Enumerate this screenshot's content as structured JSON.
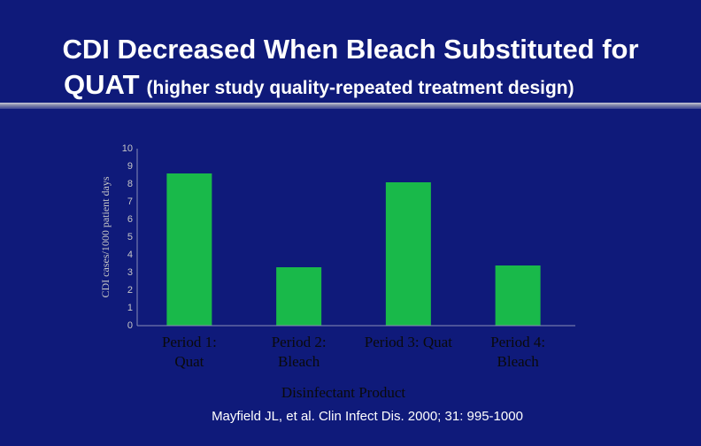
{
  "slide": {
    "title_main_line1": "CDI Decreased When Bleach Substituted for",
    "title_main_line2": "QUAT",
    "title_sub": "(higher study quality-repeated treatment design)",
    "citation": "Mayfield JL, et al. Clin Infect Dis. 2000; 31: 995-1000"
  },
  "colors": {
    "background": "#0f1a7a",
    "bar": "#19b94a",
    "axis": "#8a8fb8",
    "text": "#ffffff",
    "axis_label_text": "#c7c7c7"
  },
  "chart_data": {
    "type": "bar",
    "categories": [
      [
        "Period 1:",
        "Quat"
      ],
      [
        "Period 2:",
        "Bleach"
      ],
      [
        "Period 3: Quat"
      ],
      [
        "Period 4:",
        "Bleach"
      ]
    ],
    "values": [
      8.6,
      3.3,
      8.1,
      3.4
    ],
    "xlabel": "Disinfectant Product",
    "ylabel": "CDI cases/1000 patient days",
    "ylim": [
      0,
      10
    ],
    "yticks": [
      "0",
      "1",
      "2",
      "3",
      "4",
      "5",
      "6",
      "7",
      "8",
      "9",
      "10"
    ],
    "grid": false,
    "legend": "none"
  }
}
